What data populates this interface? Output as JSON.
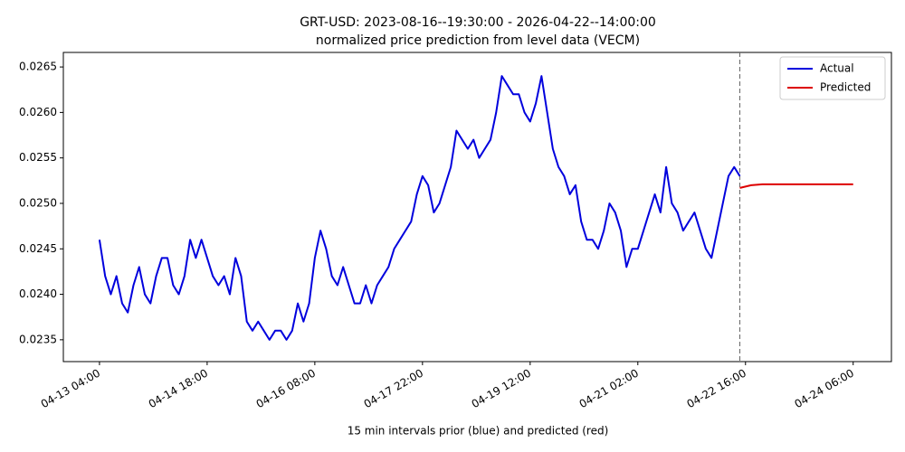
{
  "chart_data": {
    "type": "line",
    "title": "GRT-USD: 2023-08-16--19:30:00 - 2026-04-22--14:00:00",
    "subtitle": "normalized price prediction from level data (VECM)",
    "xlabel": "15 min intervals prior (blue) and predicted (red)",
    "xlim": [
      "04-12 15:15",
      "04-24 19:30"
    ],
    "xticks": [
      "04-13 04:00",
      "04-14 18:00",
      "04-16 08:00",
      "04-17 22:00",
      "04-19 12:00",
      "04-21 02:00",
      "04-22 16:00",
      "04-24 06:00"
    ],
    "ylim": [
      0.02326,
      0.02666
    ],
    "yticks": [
      0.0235,
      {
        "value": 0.024,
        "label": "0.0240"
      },
      0.0245,
      {
        "value": 0.025,
        "label": "0.0250"
      },
      0.0255,
      {
        "value": 0.026,
        "label": "0.0260"
      },
      0.0265
    ],
    "legend": "upper right",
    "series": [
      {
        "name": "Actual",
        "color": "#0000dd",
        "x": [
          "04-13 04:00",
          "04-13 06:00",
          "04-13 08:00",
          "04-13 10:00",
          "04-13 12:00",
          "04-13 14:00",
          "04-13 16:00",
          "04-13 18:00",
          "04-13 20:00",
          "04-13 22:00",
          "04-14 00:00",
          "04-14 02:00",
          "04-14 04:00",
          "04-14 06:00",
          "04-14 08:00",
          "04-14 10:00",
          "04-14 12:00",
          "04-14 14:00",
          "04-14 16:00",
          "04-14 18:00",
          "04-14 20:00",
          "04-14 22:00",
          "04-15 00:00",
          "04-15 02:00",
          "04-15 04:00",
          "04-15 06:00",
          "04-15 08:00",
          "04-15 10:00",
          "04-15 12:00",
          "04-15 14:00",
          "04-15 16:00",
          "04-15 18:00",
          "04-15 20:00",
          "04-15 22:00",
          "04-16 00:00",
          "04-16 02:00",
          "04-16 04:00",
          "04-16 06:00",
          "04-16 08:00",
          "04-16 10:00",
          "04-16 12:00",
          "04-16 14:00",
          "04-16 16:00",
          "04-16 18:00",
          "04-16 20:00",
          "04-16 22:00",
          "04-17 00:00",
          "04-17 02:00",
          "04-17 04:00",
          "04-17 06:00",
          "04-17 08:00",
          "04-17 10:00",
          "04-17 12:00",
          "04-17 14:00",
          "04-17 16:00",
          "04-17 18:00",
          "04-17 20:00",
          "04-17 22:00",
          "04-18 00:00",
          "04-18 02:00",
          "04-18 04:00",
          "04-18 06:00",
          "04-18 08:00",
          "04-18 10:00",
          "04-18 12:00",
          "04-18 14:00",
          "04-18 16:00",
          "04-18 18:00",
          "04-18 20:00",
          "04-18 22:00",
          "04-19 00:00",
          "04-19 02:00",
          "04-19 04:00",
          "04-19 06:00",
          "04-19 08:00",
          "04-19 10:00",
          "04-19 12:00",
          "04-19 14:00",
          "04-19 16:00",
          "04-19 18:00",
          "04-19 20:00",
          "04-19 22:00",
          "04-20 00:00",
          "04-20 02:00",
          "04-20 04:00",
          "04-20 06:00",
          "04-20 08:00",
          "04-20 10:00",
          "04-20 12:00",
          "04-20 14:00",
          "04-20 16:00",
          "04-20 18:00",
          "04-20 20:00",
          "04-20 22:00",
          "04-21 00:00",
          "04-21 02:00",
          "04-21 04:00",
          "04-21 06:00",
          "04-21 08:00",
          "04-21 10:00",
          "04-21 12:00",
          "04-21 14:00",
          "04-21 16:00",
          "04-21 18:00",
          "04-21 20:00",
          "04-21 22:00",
          "04-22 00:00",
          "04-22 02:00",
          "04-22 04:00",
          "04-22 06:00",
          "04-22 08:00",
          "04-22 10:00",
          "04-22 12:00",
          "04-22 14:00"
        ],
        "values": [
          0.0246,
          0.0242,
          0.024,
          0.0242,
          0.0239,
          0.0238,
          0.0241,
          0.0243,
          0.024,
          0.0239,
          0.0242,
          0.0244,
          0.0244,
          0.0241,
          0.024,
          0.0242,
          0.0246,
          0.0244,
          0.0246,
          0.0244,
          0.0242,
          0.0241,
          0.0242,
          0.024,
          0.0244,
          0.0242,
          0.0237,
          0.0236,
          0.0237,
          0.0236,
          0.0235,
          0.0236,
          0.0236,
          0.0235,
          0.0236,
          0.0239,
          0.0237,
          0.0239,
          0.0244,
          0.0247,
          0.0245,
          0.0242,
          0.0241,
          0.0243,
          0.0241,
          0.0239,
          0.0239,
          0.0241,
          0.0239,
          0.0241,
          0.0242,
          0.0243,
          0.0245,
          0.0246,
          0.0247,
          0.0248,
          0.0251,
          0.0253,
          0.0252,
          0.0249,
          0.025,
          0.0252,
          0.0254,
          0.0258,
          0.0257,
          0.0256,
          0.0257,
          0.0255,
          0.0256,
          0.0257,
          0.026,
          0.0264,
          0.0263,
          0.0262,
          0.0262,
          0.026,
          0.0259,
          0.0261,
          0.0264,
          0.026,
          0.0256,
          0.0254,
          0.0253,
          0.0251,
          0.0252,
          0.0248,
          0.0246,
          0.0246,
          0.0245,
          0.0247,
          0.025,
          0.0249,
          0.0247,
          0.0243,
          0.0245,
          0.0245,
          0.0247,
          0.0249,
          0.0251,
          0.0249,
          0.0254,
          0.025,
          0.0249,
          0.0247,
          0.0248,
          0.0249,
          0.0247,
          0.0245,
          0.0244,
          0.0247,
          0.025,
          0.0253,
          0.0254,
          0.0253
        ]
      },
      {
        "name": "Predicted",
        "color": "#dd0000",
        "x": [
          "04-22 14:00",
          "04-22 18:00",
          "04-22 22:00",
          "04-23 02:00",
          "04-23 06:00",
          "04-23 10:00",
          "04-23 14:00",
          "04-23 18:00",
          "04-23 22:00",
          "04-24 02:00",
          "04-24 06:00"
        ],
        "values": [
          0.02517,
          0.0252,
          0.02521,
          0.02521,
          0.02521,
          0.02521,
          0.02521,
          0.02521,
          0.02521,
          0.02521,
          0.02521
        ]
      }
    ]
  }
}
